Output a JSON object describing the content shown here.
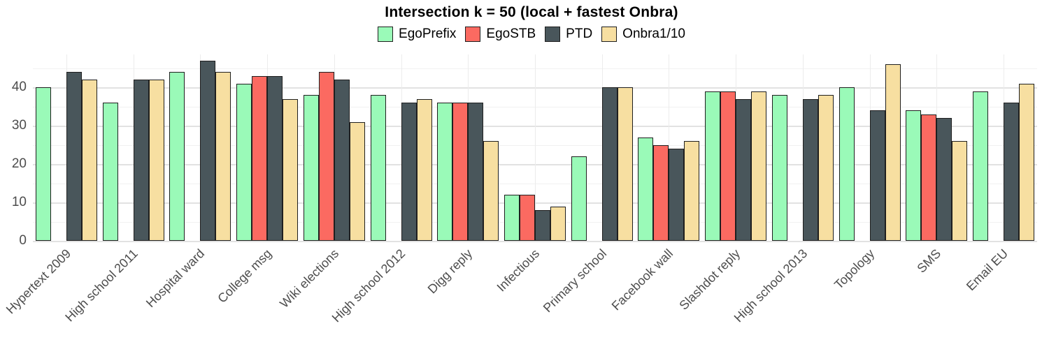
{
  "title": "Intersection k = 50 (local + fastest Onbra)",
  "chart_data": {
    "type": "bar",
    "title": "Intersection k = 50 (local + fastest Onbra)",
    "xlabel": "",
    "ylabel": "",
    "categories": [
      "Hypertext 2009",
      "High school 2011",
      "Hospital ward",
      "College msg",
      "Wiki elections",
      "High school 2012",
      "Digg reply",
      "Infectious",
      "Primary school",
      "Facebook wall",
      "Slashdot reply",
      "High school 2013",
      "Topology",
      "SMS",
      "Email EU"
    ],
    "series": [
      {
        "name": "EgoPrefix",
        "color": "#9AFAB8",
        "values": [
          40,
          36,
          44,
          41,
          38,
          38,
          36,
          12,
          22,
          27,
          39,
          38,
          40,
          34,
          39
        ]
      },
      {
        "name": "EgoSTB",
        "color": "#FB6A61",
        "values": [
          null,
          null,
          null,
          43,
          44,
          null,
          36,
          12,
          null,
          25,
          39,
          null,
          null,
          33,
          null
        ]
      },
      {
        "name": "PTD",
        "color": "#49565B",
        "values": [
          44,
          42,
          47,
          43,
          42,
          36,
          36,
          8,
          40,
          24,
          37,
          37,
          34,
          32,
          36
        ]
      },
      {
        "name": "Onbra1/10",
        "color": "#F7DFA1",
        "values": [
          42,
          42,
          44,
          37,
          31,
          37,
          26,
          9,
          40,
          26,
          39,
          38,
          46,
          26,
          41
        ]
      }
    ],
    "yticks": [
      0,
      10,
      20,
      30,
      40
    ],
    "ylim": [
      0,
      48.5
    ],
    "minor_grid_step": 5,
    "grid": true,
    "legend_position": "top",
    "bar_border_color": "#1F1F1F",
    "axis_text_color": "#4D4D4D"
  }
}
